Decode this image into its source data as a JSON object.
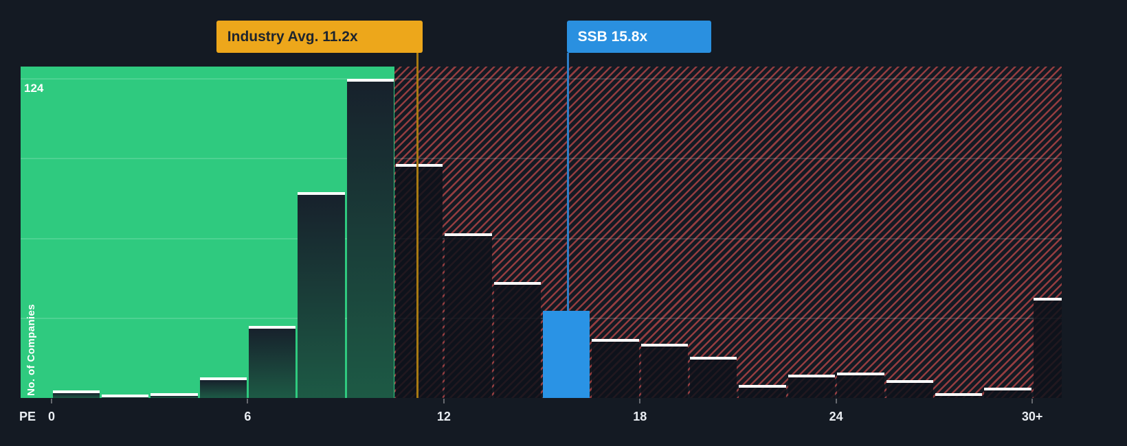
{
  "chart_data": {
    "type": "bar",
    "title": "",
    "xlabel": "PE",
    "ylabel": "No. of Companies",
    "y_max_label": "124",
    "ylim": [
      0,
      124
    ],
    "xlim": [
      0,
      31.5
    ],
    "grid": true,
    "gridline_values": [
      31,
      62,
      93,
      124
    ],
    "bin_width": 1.5,
    "x_ticks": [
      {
        "pe": 0,
        "label": "0"
      },
      {
        "pe": 6,
        "label": "6"
      },
      {
        "pe": 12,
        "label": "12"
      },
      {
        "pe": 18,
        "label": "18"
      },
      {
        "pe": 24,
        "label": "24"
      },
      {
        "pe": 30,
        "label": "30+"
      }
    ],
    "bars": [
      {
        "x": 0,
        "count": 3
      },
      {
        "x": 1.5,
        "count": 1
      },
      {
        "x": 3,
        "count": 2
      },
      {
        "x": 4.5,
        "count": 8
      },
      {
        "x": 6,
        "count": 28
      },
      {
        "x": 7.5,
        "count": 80
      },
      {
        "x": 9,
        "count": 124
      },
      {
        "x": 10.5,
        "count": 91
      },
      {
        "x": 12,
        "count": 64
      },
      {
        "x": 13.5,
        "count": 45
      },
      {
        "x": 15,
        "count": 34
      },
      {
        "x": 16.5,
        "count": 23
      },
      {
        "x": 18,
        "count": 21
      },
      {
        "x": 19.5,
        "count": 16
      },
      {
        "x": 21,
        "count": 5
      },
      {
        "x": 22.5,
        "count": 9
      },
      {
        "x": 24,
        "count": 10
      },
      {
        "x": 25.5,
        "count": 7
      },
      {
        "x": 27,
        "count": 2
      },
      {
        "x": 28.5,
        "count": 4
      },
      {
        "x": 30,
        "count": 39
      }
    ],
    "industry_avg": {
      "pe": 11.2,
      "label": "Industry Avg. 11.2x"
    },
    "company": {
      "pe": 15.8,
      "bar_x": 15,
      "label": "SSB 15.8x"
    },
    "zones": {
      "below_avg_end_pe": 10.5
    }
  },
  "colors": {
    "background": "#141a23",
    "below_avg_zone_green": "#2fca7f",
    "hatch_red": "#e05252",
    "bar_cap_white": "#ffffff",
    "company_blue": "#2a93e5",
    "company_callout_blue": "#2a90e0",
    "industry_orange": "#eda71b",
    "industry_callout_text": "#1d242e",
    "industry_line": "#a87a12",
    "company_line": "#2e7fc9",
    "axis_text": "#e9edf2"
  }
}
